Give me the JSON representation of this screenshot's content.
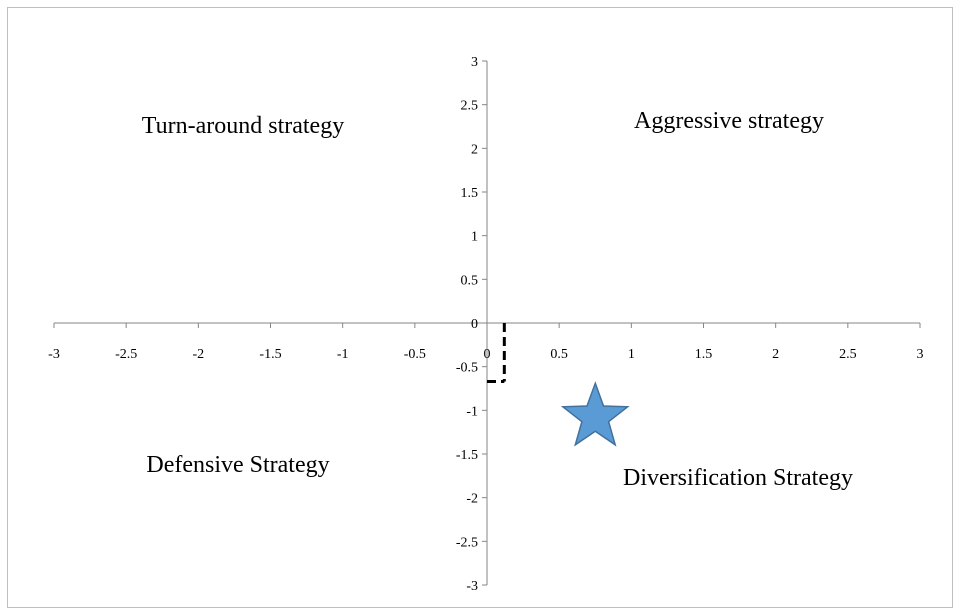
{
  "chart_data": {
    "type": "scatter",
    "title": "",
    "xlabel": "",
    "ylabel": "",
    "xlim": [
      -3,
      3
    ],
    "ylim": [
      -3,
      3
    ],
    "grid": false,
    "x_ticks": [
      "-3",
      "-2.5",
      "-2",
      "-1.5",
      "-1",
      "-0.5",
      "0",
      "0.5",
      "1",
      "1.5",
      "2",
      "2.5",
      "3"
    ],
    "y_ticks": [
      "3",
      "2.5",
      "2",
      "1.5",
      "1",
      "0.5",
      "0",
      "-0.5",
      "-1",
      "-1.5",
      "-2",
      "-2.5",
      "-3"
    ],
    "quadrant_labels": {
      "top_left": "Turn-around strategy",
      "top_right": "Aggressive strategy",
      "bottom_left": "Defensive Strategy",
      "bottom_right": "Diversification Strategy"
    },
    "position_point": {
      "x": 0.12,
      "y": -0.67
    },
    "star_marker": {
      "x": 0.75,
      "y": -1.08,
      "color": "#5B9BD5"
    },
    "colors": {
      "axis": "#868686",
      "guide": "#000000",
      "star_fill": "#5B9BD5",
      "star_stroke": "#41719C"
    }
  }
}
